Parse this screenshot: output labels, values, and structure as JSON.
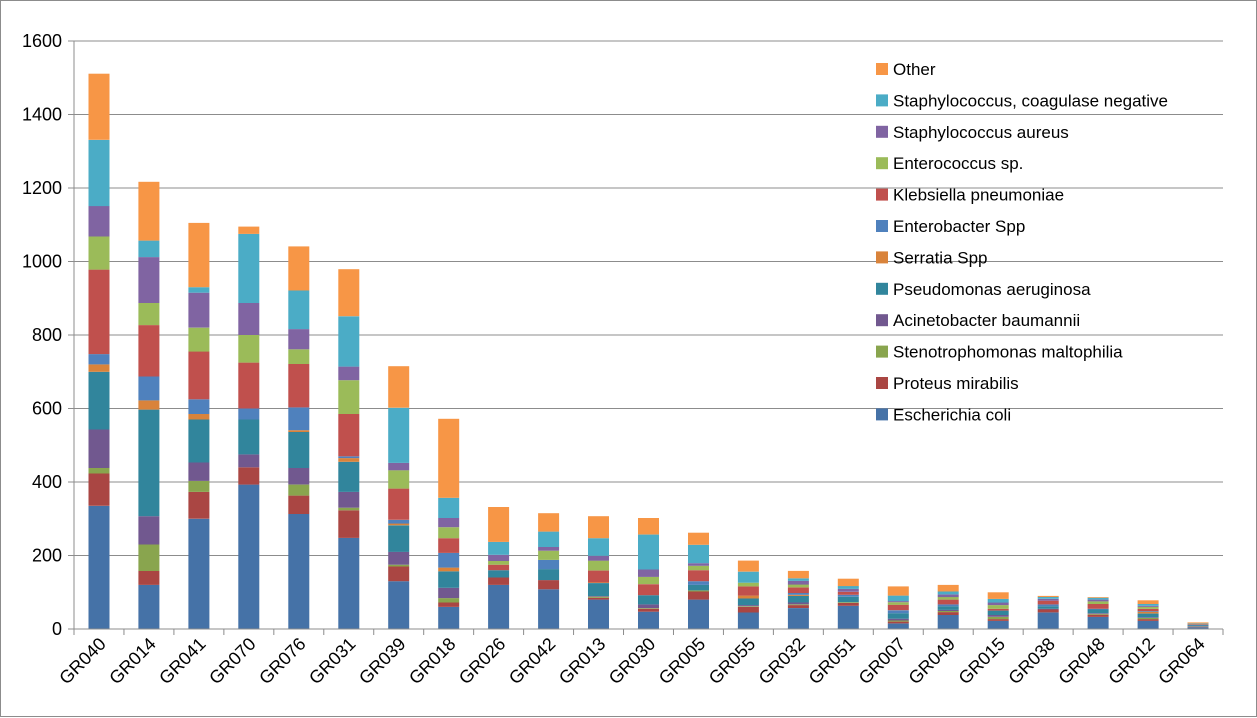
{
  "chart_data": {
    "type": "bar",
    "stacked": true,
    "title": "",
    "xlabel": "",
    "ylabel": "",
    "ylim": [
      0,
      1600
    ],
    "yticks": [
      0,
      200,
      400,
      600,
      800,
      1000,
      1200,
      1400,
      1600
    ],
    "grid": "horizontal",
    "legend_position": "top-right",
    "categories": [
      "GR040",
      "GR014",
      "GR041",
      "GR070",
      "GR076",
      "GR031",
      "GR039",
      "GR018",
      "GR026",
      "GR042",
      "GR013",
      "GR030",
      "GR005",
      "GR055",
      "GR032",
      "GR051",
      "GR007",
      "GR049",
      "GR015",
      "GR038",
      "GR048",
      "GR012",
      "GR064"
    ],
    "series": [
      {
        "name": "Escherichia coli",
        "color": "#4572A7",
        "values": [
          335,
          120,
          300,
          393,
          313,
          248,
          130,
          60,
          120,
          108,
          80,
          47,
          80,
          45,
          57,
          63,
          15,
          38,
          22,
          45,
          33,
          22,
          5
        ]
      },
      {
        "name": "Proteus mirabilis",
        "color": "#AA4643",
        "values": [
          88,
          38,
          73,
          47,
          50,
          75,
          40,
          12,
          20,
          25,
          5,
          8,
          22,
          15,
          8,
          8,
          5,
          8,
          5,
          8,
          6,
          5,
          1
        ]
      },
      {
        "name": "Stenotrophomonas maltophilia",
        "color": "#89A54E",
        "values": [
          15,
          72,
          30,
          0,
          30,
          7,
          5,
          12,
          0,
          0,
          3,
          2,
          3,
          2,
          2,
          2,
          3,
          3,
          6,
          0,
          2,
          3,
          1
        ]
      },
      {
        "name": "Acinetobacter baumannii",
        "color": "#71588F",
        "values": [
          105,
          77,
          50,
          35,
          45,
          43,
          35,
          28,
          0,
          0,
          2,
          10,
          0,
          3,
          5,
          0,
          5,
          3,
          5,
          2,
          2,
          2,
          1
        ]
      },
      {
        "name": "Pseudomonas aeruginosa",
        "color": "#31859C",
        "values": [
          157,
          290,
          117,
          95,
          98,
          82,
          72,
          45,
          20,
          30,
          35,
          25,
          15,
          18,
          18,
          15,
          15,
          10,
          12,
          7,
          10,
          10,
          2
        ]
      },
      {
        "name": "Serratia Spp",
        "color": "#D9833B",
        "values": [
          20,
          25,
          15,
          0,
          5,
          10,
          5,
          10,
          0,
          0,
          2,
          0,
          0,
          8,
          3,
          0,
          0,
          0,
          0,
          0,
          0,
          5,
          0
        ]
      },
      {
        "name": "Enterobacter Spp",
        "color": "#4F81BD",
        "values": [
          28,
          65,
          40,
          30,
          62,
          5,
          10,
          40,
          0,
          25,
          0,
          0,
          10,
          0,
          5,
          5,
          8,
          5,
          0,
          5,
          2,
          2,
          1
        ]
      },
      {
        "name": "Klebsiella pneumoniae",
        "color": "#C0504D",
        "values": [
          230,
          140,
          130,
          125,
          118,
          115,
          85,
          40,
          15,
          0,
          32,
          30,
          30,
          25,
          15,
          8,
          15,
          13,
          5,
          10,
          13,
          6,
          1
        ]
      },
      {
        "name": "Enterococcus sp.",
        "color": "#9BBB59",
        "values": [
          90,
          60,
          65,
          75,
          40,
          92,
          50,
          30,
          10,
          25,
          27,
          20,
          12,
          10,
          8,
          0,
          7,
          7,
          10,
          0,
          7,
          5,
          1
        ]
      },
      {
        "name": "Staphylococcus aureus",
        "color": "#8064A2",
        "values": [
          83,
          125,
          95,
          87,
          55,
          37,
          20,
          25,
          17,
          10,
          13,
          20,
          7,
          0,
          10,
          8,
          3,
          7,
          7,
          5,
          5,
          3,
          1
        ]
      },
      {
        "name": "Staphylococcus, coagulase negative",
        "color": "#4BACC6",
        "values": [
          180,
          45,
          15,
          188,
          105,
          137,
          150,
          55,
          35,
          42,
          48,
          95,
          50,
          30,
          7,
          8,
          15,
          8,
          10,
          5,
          5,
          5,
          1
        ]
      },
      {
        "name": "Other",
        "color": "#F79646",
        "values": [
          180,
          160,
          175,
          20,
          120,
          128,
          113,
          215,
          95,
          50,
          60,
          45,
          33,
          30,
          20,
          20,
          25,
          18,
          18,
          3,
          2,
          10,
          3
        ]
      }
    ]
  }
}
